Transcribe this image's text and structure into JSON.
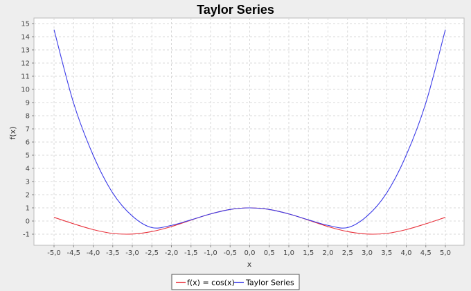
{
  "chart_data": {
    "type": "line",
    "title": "Taylor Series",
    "xlabel": "x",
    "ylabel": "f(x)",
    "xlim": [
      -5.0,
      5.0
    ],
    "ylim": [
      -1.5,
      15.5
    ],
    "x_ticks": [
      -5.0,
      -4.5,
      -4.0,
      -3.5,
      -3.0,
      -2.5,
      -2.0,
      -1.5,
      -1.0,
      -0.5,
      0.0,
      0.5,
      1.0,
      1.5,
      2.0,
      2.5,
      3.0,
      3.5,
      4.0,
      4.5,
      5.0
    ],
    "x_tick_labels": [
      "-5,0",
      "-4,5",
      "-4,0",
      "-3,5",
      "-3,0",
      "-2,5",
      "-2,0",
      "-1,5",
      "-1,0",
      "-0,5",
      "0,0",
      "0,5",
      "1,0",
      "1,5",
      "2,0",
      "2,5",
      "3,0",
      "3,5",
      "4,0",
      "4,5",
      "5,0"
    ],
    "y_ticks": [
      -1,
      0,
      1,
      2,
      3,
      4,
      5,
      6,
      7,
      8,
      9,
      10,
      11,
      12,
      13,
      14,
      15
    ],
    "y_tick_labels": [
      "-1",
      "0",
      "1",
      "2",
      "3",
      "4",
      "5",
      "6",
      "7",
      "8",
      "9",
      "10",
      "11",
      "12",
      "13",
      "14",
      "15"
    ],
    "grid": true,
    "legend_position": "bottom-center",
    "series": [
      {
        "name": "f(x) = cos(x)",
        "color": "#e8303a",
        "x": [
          -5.0,
          -4.5,
          -4.0,
          -3.5,
          -3.0,
          -2.5,
          -2.0,
          -1.5,
          -1.0,
          -0.5,
          0.0,
          0.5,
          1.0,
          1.5,
          2.0,
          2.5,
          3.0,
          3.5,
          4.0,
          4.5,
          5.0
        ],
        "y": [
          0.28,
          -0.21,
          -0.65,
          -0.94,
          -0.99,
          -0.8,
          -0.42,
          0.07,
          0.54,
          0.88,
          1.0,
          0.88,
          0.54,
          0.07,
          -0.42,
          -0.8,
          -0.99,
          -0.94,
          -0.65,
          -0.21,
          0.28
        ]
      },
      {
        "name": "Taylor Series",
        "color": "#3a3ae8",
        "x": [
          -5.0,
          -4.5,
          -4.0,
          -3.5,
          -3.0,
          -2.5,
          -2.0,
          -1.5,
          -1.0,
          -0.5,
          0.0,
          0.5,
          1.0,
          1.5,
          2.0,
          2.5,
          3.0,
          3.5,
          4.0,
          4.5,
          5.0
        ],
        "y": [
          14.54,
          8.96,
          5.0,
          2.13,
          0.38,
          -0.5,
          -0.33,
          0.09,
          0.54,
          0.88,
          1.0,
          0.88,
          0.54,
          0.09,
          -0.33,
          -0.5,
          0.38,
          2.13,
          5.0,
          8.96,
          14.54
        ]
      }
    ]
  }
}
